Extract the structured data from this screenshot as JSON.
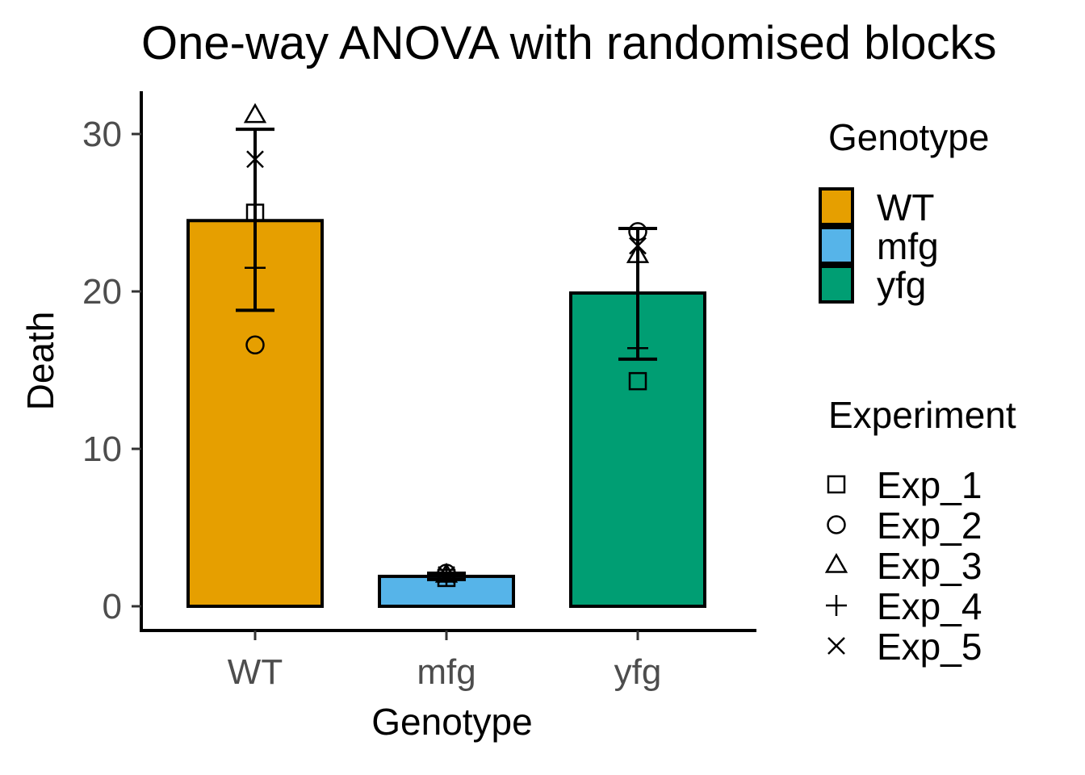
{
  "chart_data": {
    "type": "bar",
    "title": "One-way ANOVA with randomised blocks",
    "xlabel": "Genotype",
    "ylabel": "Death",
    "categories": [
      "WT",
      "mfg",
      "yfg"
    ],
    "values": [
      24.5,
      1.9,
      19.9
    ],
    "error_bars": [
      {
        "lower": 18.8,
        "upper": 30.3
      },
      {
        "lower": 1.7,
        "upper": 2.1
      },
      {
        "lower": 15.7,
        "upper": 24.0
      }
    ],
    "fill_colors": [
      "#E69F00",
      "#56B4E9",
      "#009E73"
    ],
    "ylim": [
      -1.5,
      32.5
    ],
    "yticks": [
      0,
      10,
      20,
      30
    ],
    "grid": false,
    "points": [
      {
        "category": "WT",
        "experiment": "Exp_1",
        "y": 25.0
      },
      {
        "category": "WT",
        "experiment": "Exp_2",
        "y": 16.6
      },
      {
        "category": "WT",
        "experiment": "Exp_3",
        "y": 31.2
      },
      {
        "category": "WT",
        "experiment": "Exp_4",
        "y": 21.5
      },
      {
        "category": "WT",
        "experiment": "Exp_5",
        "y": 28.4
      },
      {
        "category": "mfg",
        "experiment": "Exp_1",
        "y": 1.8
      },
      {
        "category": "mfg",
        "experiment": "Exp_2",
        "y": 2.1
      },
      {
        "category": "mfg",
        "experiment": "Exp_3",
        "y": 2.0
      },
      {
        "category": "mfg",
        "experiment": "Exp_4",
        "y": 1.9
      },
      {
        "category": "mfg",
        "experiment": "Exp_5",
        "y": 2.0
      },
      {
        "category": "yfg",
        "experiment": "Exp_1",
        "y": 14.3
      },
      {
        "category": "yfg",
        "experiment": "Exp_2",
        "y": 23.8
      },
      {
        "category": "yfg",
        "experiment": "Exp_3",
        "y": 22.3
      },
      {
        "category": "yfg",
        "experiment": "Exp_4",
        "y": 16.4
      },
      {
        "category": "yfg",
        "experiment": "Exp_5",
        "y": 22.9
      }
    ],
    "legends": [
      {
        "title": "Genotype",
        "kind": "fill",
        "entries": [
          {
            "label": "WT",
            "color": "#E69F00"
          },
          {
            "label": "mfg",
            "color": "#56B4E9"
          },
          {
            "label": "yfg",
            "color": "#009E73"
          }
        ]
      },
      {
        "title": "Experiment",
        "kind": "shape",
        "entries": [
          {
            "label": "Exp_1",
            "shape": "square"
          },
          {
            "label": "Exp_2",
            "shape": "circle"
          },
          {
            "label": "Exp_3",
            "shape": "triangle"
          },
          {
            "label": "Exp_4",
            "shape": "plus"
          },
          {
            "label": "Exp_5",
            "shape": "cross"
          }
        ]
      }
    ],
    "legend_position": "right"
  }
}
